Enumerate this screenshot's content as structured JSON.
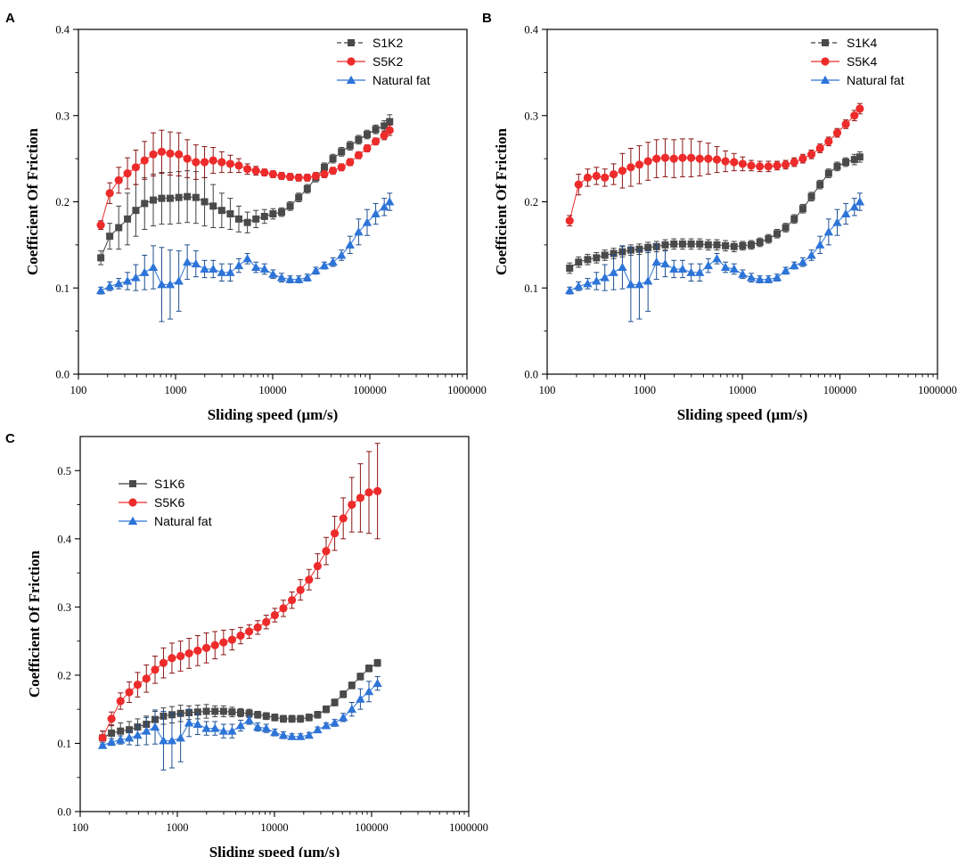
{
  "colors": {
    "S1": "#404040",
    "S1_marker": "#4a4a4a",
    "S5": "#ee2b2b",
    "S5_error": "#8b1515",
    "natural": "#2d74d8",
    "natural_error": "#1f4f8f",
    "axis": "#000000"
  },
  "chart_data": [
    {
      "panel": "A",
      "type": "line",
      "xscale": "log",
      "xlim": [
        100,
        1000000
      ],
      "ylim": [
        0.0,
        0.4
      ],
      "xticks": [
        "100",
        "1000",
        "10000",
        "100000",
        "1000000"
      ],
      "yticks": [
        "0.0",
        "0.1",
        "0.2",
        "0.3",
        "0.4"
      ],
      "xlabel": "Sliding speed (μm/s)",
      "ylabel": "Coefficient Of Friction",
      "legend_position": "top-right",
      "x": [
        170,
        210,
        260,
        320,
        390,
        480,
        590,
        720,
        880,
        1080,
        1320,
        1620,
        1990,
        2440,
        2990,
        3660,
        4480,
        5490,
        6720,
        8230,
        10080,
        12350,
        15130,
        18530,
        22700,
        27800,
        34050,
        41700,
        51080,
        62560,
        76630,
        93850,
        114950,
        140800,
        160000
      ],
      "series": [
        {
          "name": "S1K2",
          "marker": "square",
          "values": [
            0.135,
            0.16,
            0.17,
            0.18,
            0.19,
            0.198,
            0.202,
            0.204,
            0.204,
            0.205,
            0.206,
            0.205,
            0.2,
            0.195,
            0.19,
            0.186,
            0.18,
            0.176,
            0.18,
            0.183,
            0.186,
            0.188,
            0.195,
            0.205,
            0.215,
            0.228,
            0.24,
            0.25,
            0.258,
            0.265,
            0.272,
            0.278,
            0.284,
            0.288,
            0.293
          ],
          "errors": [
            0.008,
            0.015,
            0.025,
            0.03,
            0.03,
            0.03,
            0.03,
            0.03,
            0.03,
            0.03,
            0.03,
            0.03,
            0.028,
            0.025,
            0.02,
            0.018,
            0.015,
            0.012,
            0.01,
            0.008,
            0.006,
            0.005,
            0.005,
            0.005,
            0.005,
            0.005,
            0.005,
            0.005,
            0.005,
            0.005,
            0.005,
            0.005,
            0.005,
            0.006,
            0.008
          ]
        },
        {
          "name": "S5K2",
          "marker": "circle",
          "values": [
            0.173,
            0.21,
            0.225,
            0.233,
            0.24,
            0.248,
            0.255,
            0.258,
            0.256,
            0.255,
            0.25,
            0.246,
            0.246,
            0.248,
            0.246,
            0.244,
            0.242,
            0.238,
            0.236,
            0.234,
            0.232,
            0.23,
            0.229,
            0.228,
            0.228,
            0.23,
            0.232,
            0.236,
            0.24,
            0.246,
            0.254,
            0.262,
            0.27,
            0.277,
            0.283
          ],
          "errors": [
            0.005,
            0.012,
            0.015,
            0.018,
            0.02,
            0.022,
            0.025,
            0.025,
            0.025,
            0.025,
            0.022,
            0.02,
            0.018,
            0.015,
            0.012,
            0.01,
            0.008,
            0.006,
            0.005,
            0.004,
            0.004,
            0.004,
            0.004,
            0.004,
            0.004,
            0.004,
            0.004,
            0.004,
            0.004,
            0.004,
            0.004,
            0.004,
            0.004,
            0.005,
            0.006
          ]
        },
        {
          "name": "Natural fat",
          "marker": "triangle",
          "values": [
            0.097,
            0.102,
            0.105,
            0.108,
            0.112,
            0.118,
            0.124,
            0.104,
            0.104,
            0.108,
            0.13,
            0.128,
            0.122,
            0.122,
            0.118,
            0.118,
            0.126,
            0.134,
            0.124,
            0.122,
            0.116,
            0.112,
            0.11,
            0.11,
            0.112,
            0.12,
            0.126,
            0.13,
            0.138,
            0.15,
            0.165,
            0.176,
            0.186,
            0.194,
            0.2
          ],
          "errors": [
            0.004,
            0.005,
            0.006,
            0.01,
            0.015,
            0.02,
            0.025,
            0.043,
            0.04,
            0.035,
            0.02,
            0.015,
            0.01,
            0.01,
            0.01,
            0.01,
            0.008,
            0.006,
            0.006,
            0.006,
            0.005,
            0.005,
            0.004,
            0.004,
            0.004,
            0.004,
            0.004,
            0.005,
            0.006,
            0.01,
            0.015,
            0.015,
            0.012,
            0.01,
            0.01
          ]
        }
      ]
    },
    {
      "panel": "B",
      "type": "line",
      "xscale": "log",
      "xlim": [
        100,
        1000000
      ],
      "ylim": [
        0.0,
        0.4
      ],
      "xticks": [
        "100",
        "1000",
        "10000",
        "100000",
        "1000000"
      ],
      "yticks": [
        "0.0",
        "0.1",
        "0.2",
        "0.3",
        "0.4"
      ],
      "xlabel": "Sliding speed (μm/s)",
      "ylabel": "Coefficient Of Friction",
      "legend_position": "top-right",
      "x": [
        170,
        210,
        260,
        320,
        390,
        480,
        590,
        720,
        880,
        1080,
        1320,
        1620,
        1990,
        2440,
        2990,
        3660,
        4480,
        5490,
        6720,
        8230,
        10080,
        12350,
        15130,
        18530,
        22700,
        27800,
        34050,
        41700,
        51080,
        62560,
        76630,
        93850,
        114950,
        140800,
        160000
      ],
      "series": [
        {
          "name": "S1K4",
          "marker": "square",
          "values": [
            0.123,
            0.13,
            0.133,
            0.135,
            0.138,
            0.14,
            0.142,
            0.144,
            0.145,
            0.147,
            0.148,
            0.15,
            0.151,
            0.151,
            0.151,
            0.151,
            0.15,
            0.15,
            0.149,
            0.148,
            0.149,
            0.15,
            0.153,
            0.157,
            0.163,
            0.17,
            0.18,
            0.192,
            0.206,
            0.22,
            0.233,
            0.241,
            0.246,
            0.249,
            0.252
          ],
          "errors": [
            0.006,
            0.006,
            0.006,
            0.006,
            0.006,
            0.006,
            0.006,
            0.006,
            0.006,
            0.006,
            0.006,
            0.006,
            0.006,
            0.006,
            0.006,
            0.006,
            0.006,
            0.006,
            0.006,
            0.006,
            0.005,
            0.005,
            0.005,
            0.005,
            0.005,
            0.005,
            0.005,
            0.005,
            0.005,
            0.005,
            0.005,
            0.005,
            0.005,
            0.006,
            0.006
          ]
        },
        {
          "name": "S5K4",
          "marker": "circle",
          "values": [
            0.178,
            0.22,
            0.228,
            0.23,
            0.228,
            0.232,
            0.236,
            0.24,
            0.243,
            0.247,
            0.25,
            0.251,
            0.25,
            0.251,
            0.251,
            0.25,
            0.25,
            0.249,
            0.247,
            0.246,
            0.244,
            0.242,
            0.241,
            0.241,
            0.242,
            0.243,
            0.246,
            0.25,
            0.255,
            0.262,
            0.27,
            0.28,
            0.29,
            0.3,
            0.308
          ],
          "errors": [
            0.006,
            0.012,
            0.01,
            0.01,
            0.01,
            0.012,
            0.02,
            0.022,
            0.022,
            0.022,
            0.022,
            0.022,
            0.022,
            0.022,
            0.022,
            0.02,
            0.018,
            0.015,
            0.012,
            0.01,
            0.008,
            0.006,
            0.006,
            0.006,
            0.005,
            0.005,
            0.005,
            0.005,
            0.005,
            0.005,
            0.005,
            0.005,
            0.005,
            0.006,
            0.006
          ]
        },
        {
          "name": "Natural fat",
          "marker": "triangle",
          "values": [
            0.097,
            0.102,
            0.105,
            0.108,
            0.112,
            0.118,
            0.124,
            0.104,
            0.104,
            0.108,
            0.13,
            0.128,
            0.122,
            0.122,
            0.118,
            0.118,
            0.126,
            0.134,
            0.124,
            0.122,
            0.116,
            0.112,
            0.11,
            0.11,
            0.112,
            0.12,
            0.126,
            0.13,
            0.138,
            0.15,
            0.165,
            0.176,
            0.186,
            0.194,
            0.2
          ],
          "errors": [
            0.004,
            0.005,
            0.006,
            0.01,
            0.015,
            0.02,
            0.025,
            0.043,
            0.04,
            0.035,
            0.02,
            0.015,
            0.01,
            0.01,
            0.01,
            0.01,
            0.008,
            0.006,
            0.006,
            0.006,
            0.005,
            0.005,
            0.004,
            0.004,
            0.004,
            0.004,
            0.004,
            0.005,
            0.006,
            0.01,
            0.015,
            0.015,
            0.012,
            0.01,
            0.01
          ]
        }
      ]
    },
    {
      "panel": "C",
      "type": "line",
      "xscale": "log",
      "xlim": [
        100,
        1000000
      ],
      "ylim": [
        0.0,
        0.55
      ],
      "xticks": [
        "100",
        "1000",
        "10000",
        "100000",
        "1000000"
      ],
      "yticks": [
        "0.0",
        "0.1",
        "0.2",
        "0.3",
        "0.4",
        "0.5"
      ],
      "xlabel": "Sliding speed (μm/s)",
      "ylabel": "Coefficient Of Friction",
      "legend_position": "top-left",
      "x": [
        170,
        210,
        260,
        320,
        390,
        480,
        590,
        720,
        880,
        1080,
        1320,
        1620,
        1990,
        2440,
        2990,
        3660,
        4480,
        5490,
        6720,
        8230,
        10080,
        12350,
        15130,
        18530,
        22700,
        27800,
        34050,
        41700,
        51080,
        62560,
        76630,
        93850,
        114950
      ],
      "series": [
        {
          "name": "S1K6",
          "marker": "square",
          "values": [
            0.108,
            0.115,
            0.118,
            0.12,
            0.124,
            0.128,
            0.135,
            0.14,
            0.142,
            0.144,
            0.145,
            0.146,
            0.147,
            0.147,
            0.147,
            0.146,
            0.145,
            0.144,
            0.142,
            0.14,
            0.138,
            0.136,
            0.136,
            0.136,
            0.138,
            0.142,
            0.15,
            0.16,
            0.172,
            0.185,
            0.198,
            0.21,
            0.218
          ],
          "errors": [
            0.01,
            0.012,
            0.012,
            0.012,
            0.012,
            0.012,
            0.012,
            0.012,
            0.012,
            0.012,
            0.01,
            0.01,
            0.01,
            0.008,
            0.008,
            0.007,
            0.006,
            0.006,
            0.005,
            0.005,
            0.005,
            0.005,
            0.005,
            0.005,
            0.005,
            0.005,
            0.005,
            0.005,
            0.005,
            0.005,
            0.005,
            0.005,
            0.005
          ]
        },
        {
          "name": "S5K6",
          "marker": "circle",
          "values": [
            0.108,
            0.136,
            0.162,
            0.175,
            0.186,
            0.195,
            0.208,
            0.218,
            0.225,
            0.228,
            0.232,
            0.236,
            0.24,
            0.244,
            0.248,
            0.252,
            0.258,
            0.264,
            0.27,
            0.278,
            0.288,
            0.298,
            0.31,
            0.325,
            0.34,
            0.36,
            0.382,
            0.408,
            0.43,
            0.45,
            0.46,
            0.468,
            0.47
          ],
          "errors": [
            0.01,
            0.01,
            0.012,
            0.015,
            0.018,
            0.02,
            0.02,
            0.022,
            0.022,
            0.022,
            0.022,
            0.022,
            0.022,
            0.02,
            0.018,
            0.015,
            0.012,
            0.01,
            0.01,
            0.01,
            0.01,
            0.012,
            0.012,
            0.015,
            0.015,
            0.018,
            0.02,
            0.025,
            0.03,
            0.04,
            0.05,
            0.06,
            0.07
          ]
        },
        {
          "name": "Natural fat",
          "marker": "triangle",
          "values": [
            0.097,
            0.102,
            0.105,
            0.108,
            0.112,
            0.118,
            0.124,
            0.104,
            0.104,
            0.108,
            0.13,
            0.128,
            0.122,
            0.122,
            0.118,
            0.118,
            0.126,
            0.134,
            0.124,
            0.122,
            0.116,
            0.112,
            0.11,
            0.11,
            0.112,
            0.12,
            0.126,
            0.13,
            0.138,
            0.15,
            0.165,
            0.176,
            0.188
          ],
          "errors": [
            0.004,
            0.005,
            0.006,
            0.01,
            0.015,
            0.02,
            0.025,
            0.043,
            0.04,
            0.035,
            0.02,
            0.015,
            0.01,
            0.01,
            0.01,
            0.01,
            0.008,
            0.006,
            0.006,
            0.006,
            0.005,
            0.005,
            0.004,
            0.004,
            0.004,
            0.004,
            0.004,
            0.005,
            0.006,
            0.01,
            0.015,
            0.015,
            0.01
          ]
        }
      ]
    }
  ]
}
